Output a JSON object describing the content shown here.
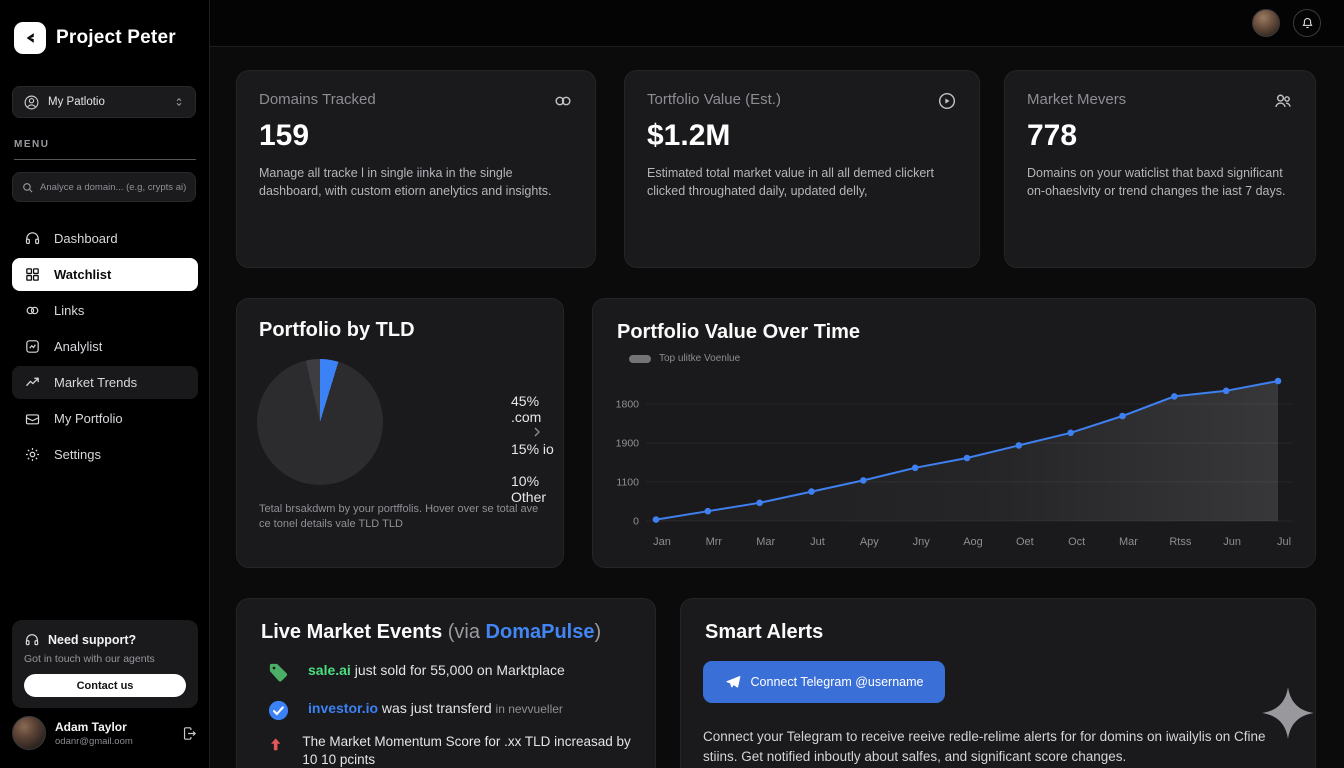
{
  "app": {
    "title": "Project Peter"
  },
  "sidebar": {
    "workspace_label": "My Patlotio",
    "menu_label": "MENU",
    "search_placeholder": "Analyce a domain... (e.g, crypts ai)",
    "nav": [
      {
        "label": "Dashboard"
      },
      {
        "label": "Watchlist"
      },
      {
        "label": "Links"
      },
      {
        "label": "Analylist"
      },
      {
        "label": "Market Trends"
      },
      {
        "label": "My Portfolio"
      },
      {
        "label": "Settings"
      }
    ],
    "support": {
      "title": "Need support?",
      "subtitle": "Got in touch with our agents",
      "button_label": "Contact us"
    },
    "user": {
      "name": "Adam Taylor",
      "email": "odanr@gmail.oom"
    }
  },
  "stats": [
    {
      "title": "Domains Tracked",
      "value": "159",
      "description": "Manage all tracke l in single iinka in the single dashboard, with custom etiorn anelytics and insights."
    },
    {
      "title": "Tortfolio Value (Est.)",
      "value": "$1.2M",
      "description": "Estimated total market value in all all demed clickert clicked throughated daily, updated delly,"
    },
    {
      "title": "Market Mevers",
      "value": "778",
      "description": "Domains on your waticlist that baxd significant on-ohaeslvity or trend changes the iast 7 days."
    }
  ],
  "tld_card": {
    "title": "Portfolio by TLD",
    "legend": [
      {
        "label": "45% .com"
      },
      {
        "label": "15% io"
      },
      {
        "label": "10% Other"
      }
    ],
    "footer": "Tetal brsakdwm by your portffolis. Hover over se total ave ce tonel details vale TLD TLD",
    "pie_visual": {
      "accent_color": "#3b82f6",
      "accent_deg": 17,
      "base_color": "#2c2c2f",
      "secondary_color": "#3e3e42",
      "secondary_deg": 13
    }
  },
  "value_chart": {
    "title": "Portfolio Value Over Time",
    "legend_label": "Top ulitke Voenlue"
  },
  "events_card": {
    "title": "Live Market Events",
    "via_prefix": " (via ",
    "via_link": "DomaPulse",
    "via_suffix": ")",
    "events": [
      {
        "domain": "sale.ai",
        "text": "just sold for 55,000 on Marktplace",
        "muted": ""
      },
      {
        "domain": "investor.io",
        "text": "was just transferd",
        "muted": "in nevvueller"
      },
      {
        "domain": "",
        "text": "The Market Momentum Score for .xx TLD increasad by 10 10 pcints",
        "muted": ""
      }
    ]
  },
  "alerts_card": {
    "title": "Smart Alerts",
    "button_label": "Connect Telegram @username",
    "description": "Connect your Telegram to receive reeive redle-relime alerts for for domins on iwailylis on Cfine stiins. Get notified inboutly about salfes, and significant score changes."
  },
  "chart_data": [
    {
      "type": "pie",
      "title": "Portfolio by TLD",
      "labels": [
        ".com",
        "io",
        "Other"
      ],
      "values": [
        45,
        15,
        10
      ],
      "accent_color": "#3b82f6"
    },
    {
      "type": "line",
      "title": "Portfolio Value Over Time",
      "categories": [
        "Jan",
        "Mrr",
        "Mar",
        "Jut",
        "Apy",
        "Jny",
        "Aog",
        "Oet",
        "Oct",
        "Mar",
        "Rtss",
        "Jun",
        "Jul"
      ],
      "series": [
        {
          "name": "Top ulitke Voenlue",
          "values_norm": [
            0.01,
            0.07,
            0.13,
            0.21,
            0.29,
            0.38,
            0.45,
            0.54,
            0.63,
            0.75,
            0.89,
            0.93,
            1.0
          ]
        }
      ],
      "ytick_labels_bottom_to_top": [
        "0",
        "1100",
        "1900",
        "1800"
      ],
      "line_color": "#3f80f0",
      "grid_color": "#27272a",
      "legend_position": "top-left",
      "ylim_note": "baseline 0 at bottom gridline; points rise to above top gridline"
    }
  ]
}
